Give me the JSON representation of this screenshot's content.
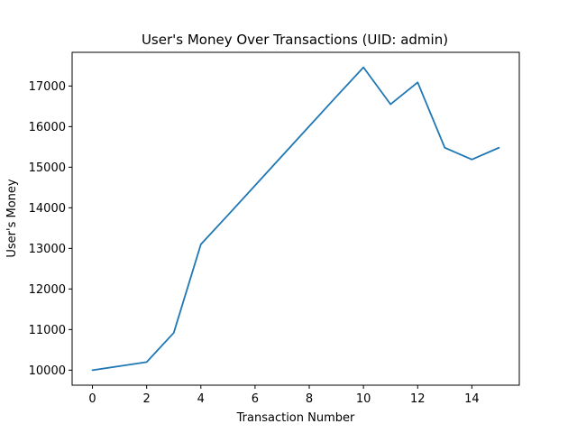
{
  "chart_data": {
    "type": "line",
    "title": "User's Money Over Transactions (UID: admin)",
    "xlabel": "Transaction Number",
    "ylabel": "User's Money",
    "xlim": [
      -0.75,
      15.75
    ],
    "ylim": [
      9630,
      17830
    ],
    "xticks": [
      0,
      2,
      4,
      6,
      8,
      10,
      12,
      14
    ],
    "yticks": [
      10000,
      11000,
      12000,
      13000,
      14000,
      15000,
      16000,
      17000
    ],
    "grid": false,
    "legend": "none",
    "series": [
      {
        "color": "#1f77b4",
        "x": [
          0,
          1,
          2,
          3,
          4,
          5,
          6,
          7,
          8,
          9,
          10,
          11,
          12,
          13,
          14,
          15
        ],
        "y": [
          10000,
          10100,
          10200,
          10920,
          13100,
          13820,
          14550,
          15280,
          16010,
          16740,
          17460,
          16550,
          17090,
          15480,
          15190,
          15480
        ]
      }
    ]
  }
}
